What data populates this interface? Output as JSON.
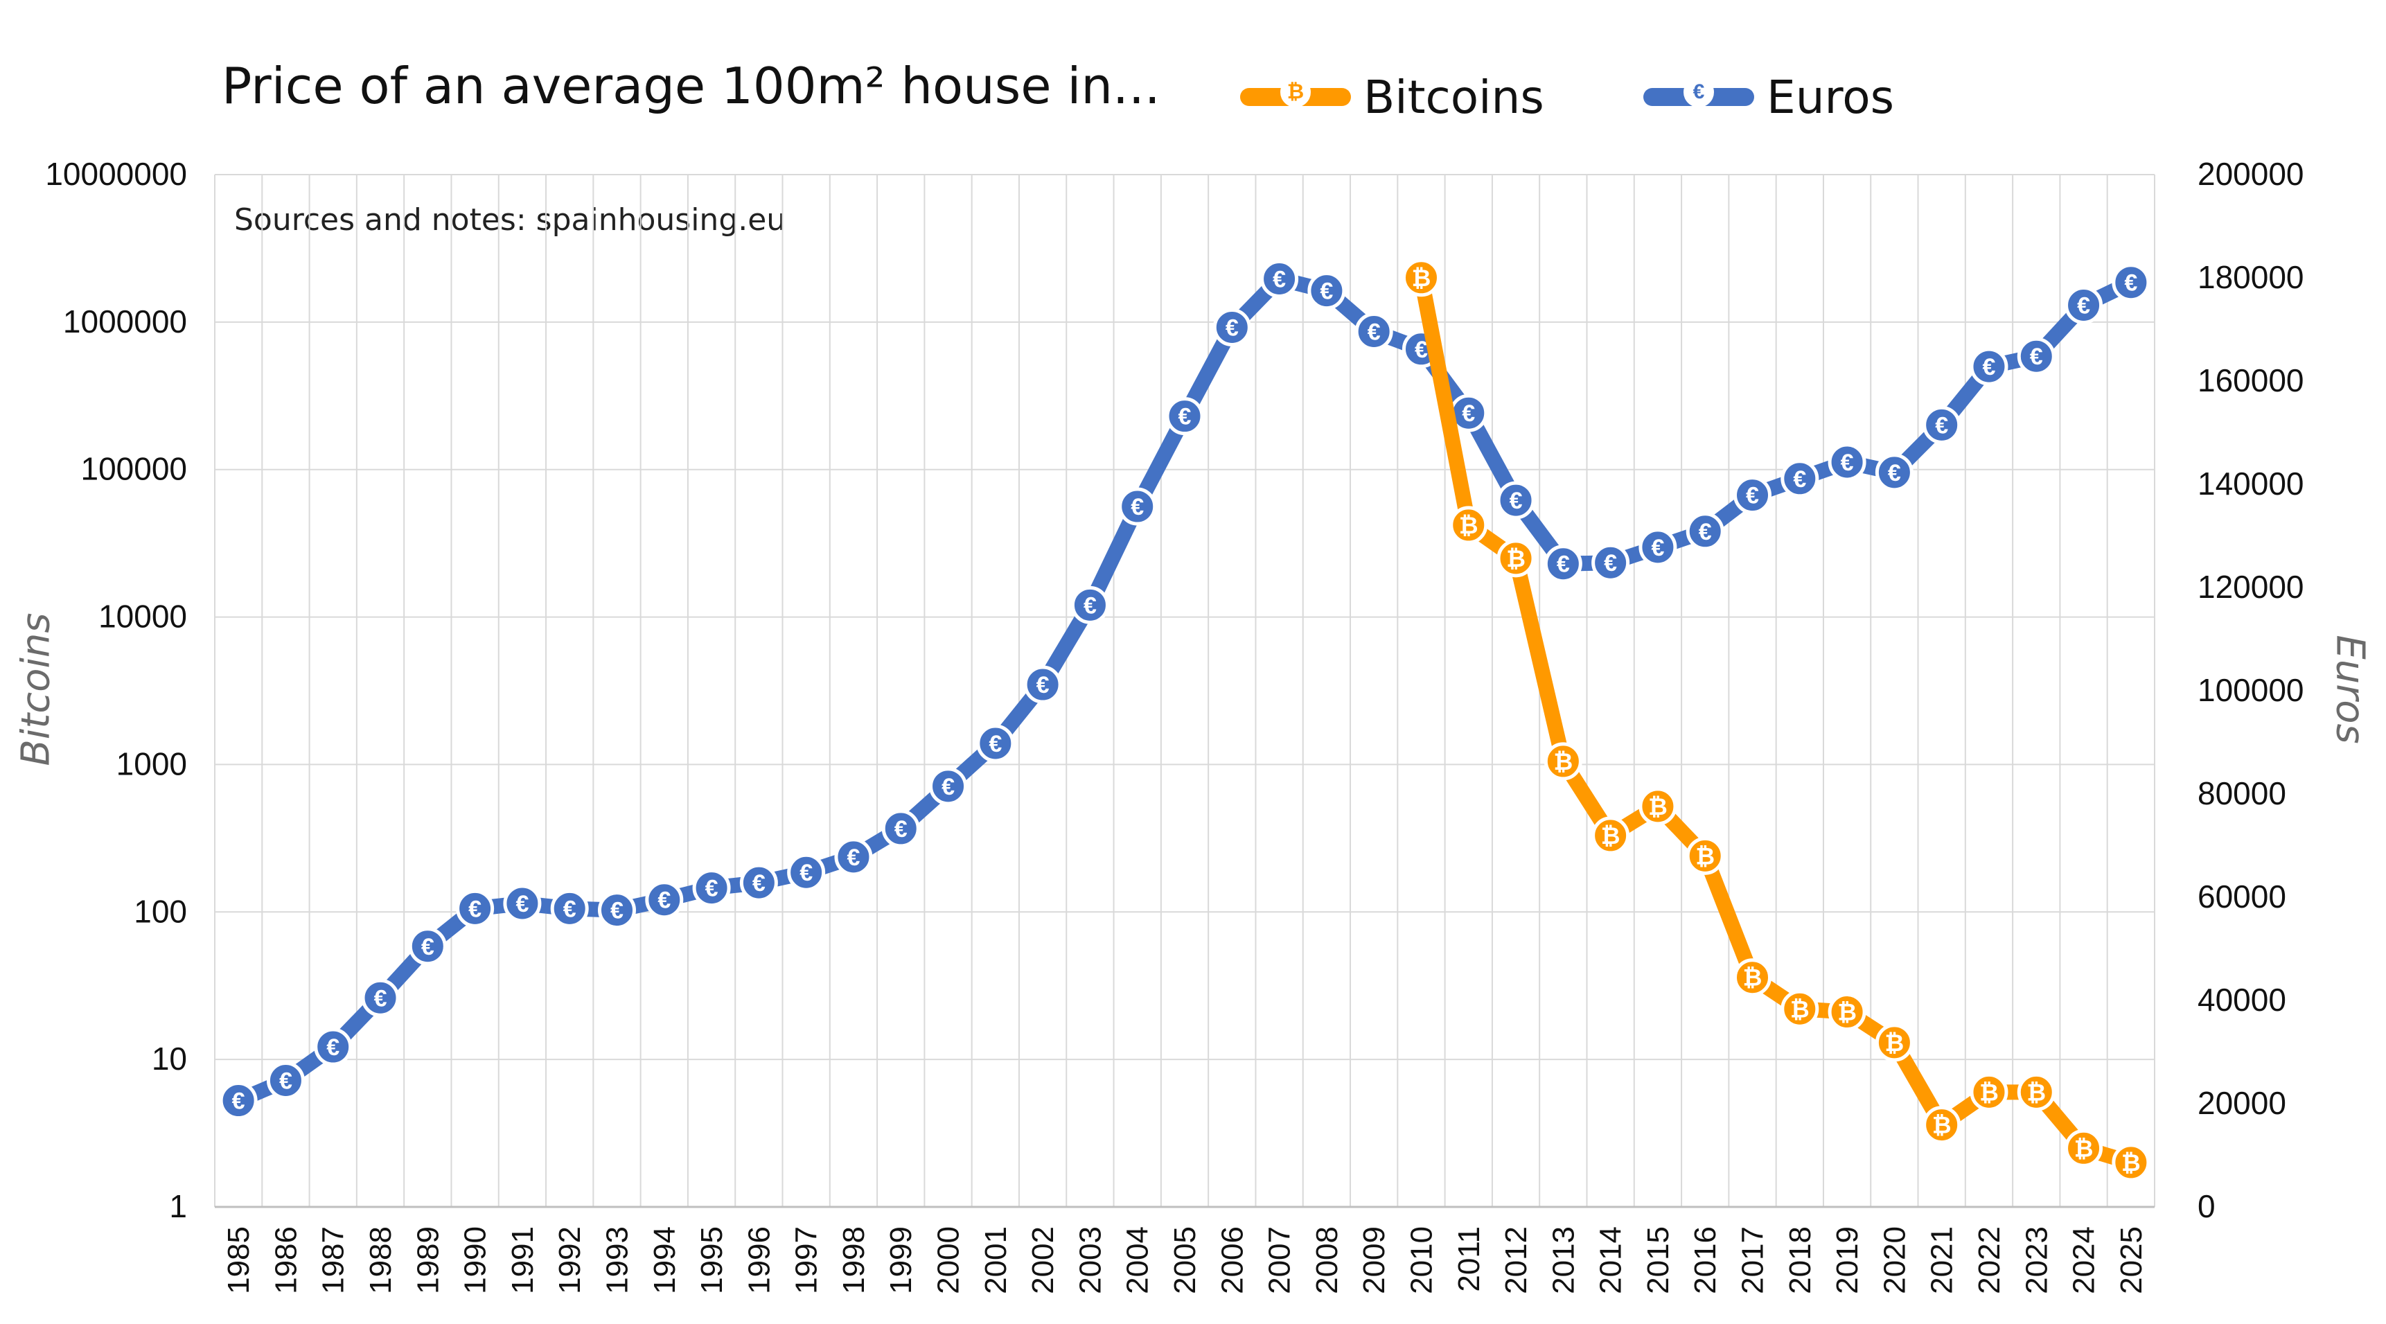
{
  "chart_data": {
    "type": "line",
    "title": "Price of an average 100m² house in...",
    "note": "Sources and notes: spainhousing.eu",
    "x": [
      1985,
      1986,
      1987,
      1988,
      1989,
      1990,
      1991,
      1992,
      1993,
      1994,
      1995,
      1996,
      1997,
      1998,
      1999,
      2000,
      2001,
      2002,
      2003,
      2004,
      2005,
      2006,
      2007,
      2008,
      2009,
      2010,
      2011,
      2012,
      2013,
      2014,
      2015,
      2016,
      2017,
      2018,
      2019,
      2020,
      2021,
      2022,
      2023,
      2024,
      2025
    ],
    "x_tick_labels": [
      "1985",
      "1986",
      "1987",
      "1988",
      "1989",
      "1990",
      "1991",
      "1992",
      "1993",
      "1994",
      "1995",
      "1996",
      "1997",
      "1998",
      "1999",
      "2000",
      "2001",
      "2002",
      "2003",
      "2004",
      "2005",
      "2006",
      "2007",
      "2008",
      "2009",
      "2010",
      "2011",
      "2012",
      "2013",
      "2014",
      "2015",
      "2016",
      "2017",
      "2018",
      "2019",
      "2020",
      "2021",
      "2022",
      "2023",
      "2024",
      "2025"
    ],
    "y_left": {
      "label": "Bitcoins",
      "scale": "log",
      "range": [
        1,
        10000000
      ],
      "tick_labels": [
        "1",
        "10",
        "100",
        "1000",
        "10000",
        "100000",
        "1000000",
        "10000000"
      ]
    },
    "y_right": {
      "label": "Euros",
      "scale": "linear",
      "range": [
        0,
        200000
      ],
      "tick_labels": [
        "0",
        "20000",
        "40000",
        "60000",
        "80000",
        "100000",
        "120000",
        "140000",
        "160000",
        "180000",
        "200000"
      ]
    },
    "grid": true,
    "legend_position": "top",
    "series": [
      {
        "name": "Bitcoins",
        "axis": "left",
        "color": "#FF9900",
        "marker_icon": "bitcoin-icon",
        "marker_glyph": "₿",
        "x": [
          2010,
          2011,
          2012,
          2013,
          2014,
          2015,
          2016,
          2017,
          2018,
          2019,
          2020,
          2021,
          2022,
          2023,
          2024,
          2025
        ],
        "values": [
          2000000,
          42000,
          25000,
          1050,
          330,
          520,
          240,
          36,
          22,
          21,
          13,
          3.6,
          6,
          6,
          2.5,
          2
        ]
      },
      {
        "name": "Euros",
        "axis": "right",
        "color": "#4472C4",
        "marker_icon": "euro-icon",
        "marker_glyph": "€",
        "x": [
          1985,
          1986,
          1987,
          1988,
          1989,
          1990,
          1991,
          1992,
          1993,
          1994,
          1995,
          1996,
          1997,
          1998,
          1999,
          2000,
          2001,
          2002,
          2003,
          2004,
          2005,
          2006,
          2007,
          2008,
          2009,
          2010,
          2011,
          2012,
          2013,
          2014,
          2015,
          2016,
          2017,
          2018,
          2019,
          2020,
          2021,
          2022,
          2023,
          2024,
          2025
        ],
        "values": [
          20600,
          24500,
          31000,
          40500,
          50500,
          57800,
          58800,
          57800,
          57500,
          59500,
          61800,
          62800,
          64800,
          67800,
          73300,
          81500,
          89800,
          101200,
          116600,
          135700,
          153200,
          170400,
          179800,
          177500,
          169600,
          166200,
          153800,
          136900,
          124600,
          124800,
          127800,
          130900,
          137900,
          141100,
          144300,
          142300,
          151500,
          162800,
          164800,
          174700,
          179100
        ]
      }
    ]
  }
}
